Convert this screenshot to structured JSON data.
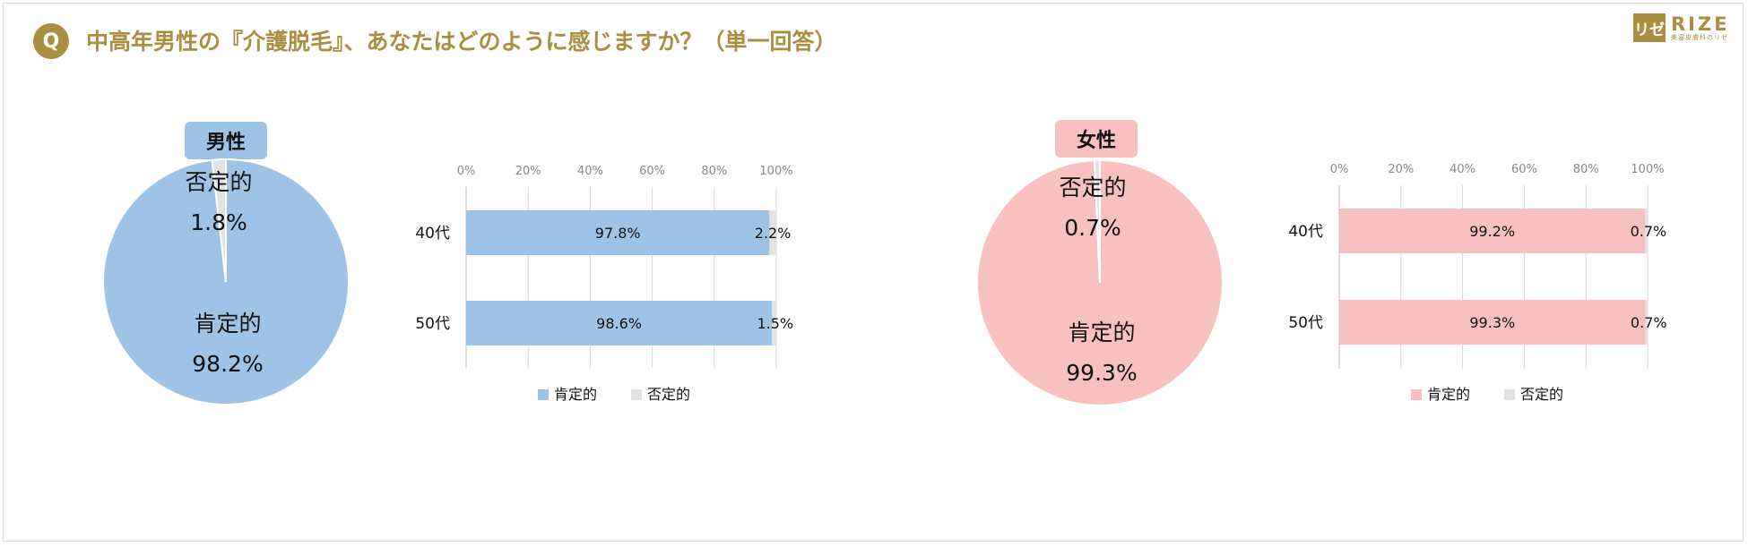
{
  "question": {
    "badge": "Q",
    "text": "中高年男性の『介護脱毛』、あなたはどのように感じますか？（単一回答）"
  },
  "logo": {
    "mark": "リゼ",
    "word": "RIZE",
    "sub": "美容皮膚科のリゼ"
  },
  "colors": {
    "gold": "#a98f3f",
    "male": "#9dc3e6",
    "female": "#f8c0be",
    "negative": "#e2e2e2"
  },
  "panels": {
    "male": {
      "label": "男性",
      "color": "#9dc3e6"
    },
    "female": {
      "label": "女性",
      "color": "#f8c0be"
    }
  },
  "chart_data": [
    {
      "type": "pie",
      "panel": "男性",
      "slices": [
        {
          "label": "肯定的",
          "value": 98.2,
          "text": "98.2%"
        },
        {
          "label": "否定的",
          "value": 1.8,
          "text": "1.8%"
        }
      ]
    },
    {
      "type": "bar",
      "orientation": "horizontal",
      "stacked": true,
      "panel": "男性",
      "categories": [
        "40代",
        "50代"
      ],
      "series": [
        {
          "name": "肯定的",
          "values": [
            97.8,
            98.6
          ],
          "labels": [
            "97.8%",
            "98.6%"
          ]
        },
        {
          "name": "否定的",
          "values": [
            2.2,
            1.5
          ],
          "labels": [
            "2.2%",
            "1.5%"
          ]
        }
      ],
      "xticks": [
        "0%",
        "20%",
        "40%",
        "60%",
        "80%",
        "100%"
      ],
      "xlim": [
        0,
        100
      ],
      "legend": "bottom"
    },
    {
      "type": "pie",
      "panel": "女性",
      "slices": [
        {
          "label": "肯定的",
          "value": 99.3,
          "text": "99.3%"
        },
        {
          "label": "否定的",
          "value": 0.7,
          "text": "0.7%"
        }
      ]
    },
    {
      "type": "bar",
      "orientation": "horizontal",
      "stacked": true,
      "panel": "女性",
      "categories": [
        "40代",
        "50代"
      ],
      "series": [
        {
          "name": "肯定的",
          "values": [
            99.2,
            99.3
          ],
          "labels": [
            "99.2%",
            "99.3%"
          ]
        },
        {
          "name": "否定的",
          "values": [
            0.7,
            0.7
          ],
          "labels": [
            "0.7%",
            "0.7%"
          ]
        }
      ],
      "xticks": [
        "0%",
        "20%",
        "40%",
        "60%",
        "80%",
        "100%"
      ],
      "xlim": [
        0,
        100
      ],
      "legend": "bottom"
    }
  ]
}
